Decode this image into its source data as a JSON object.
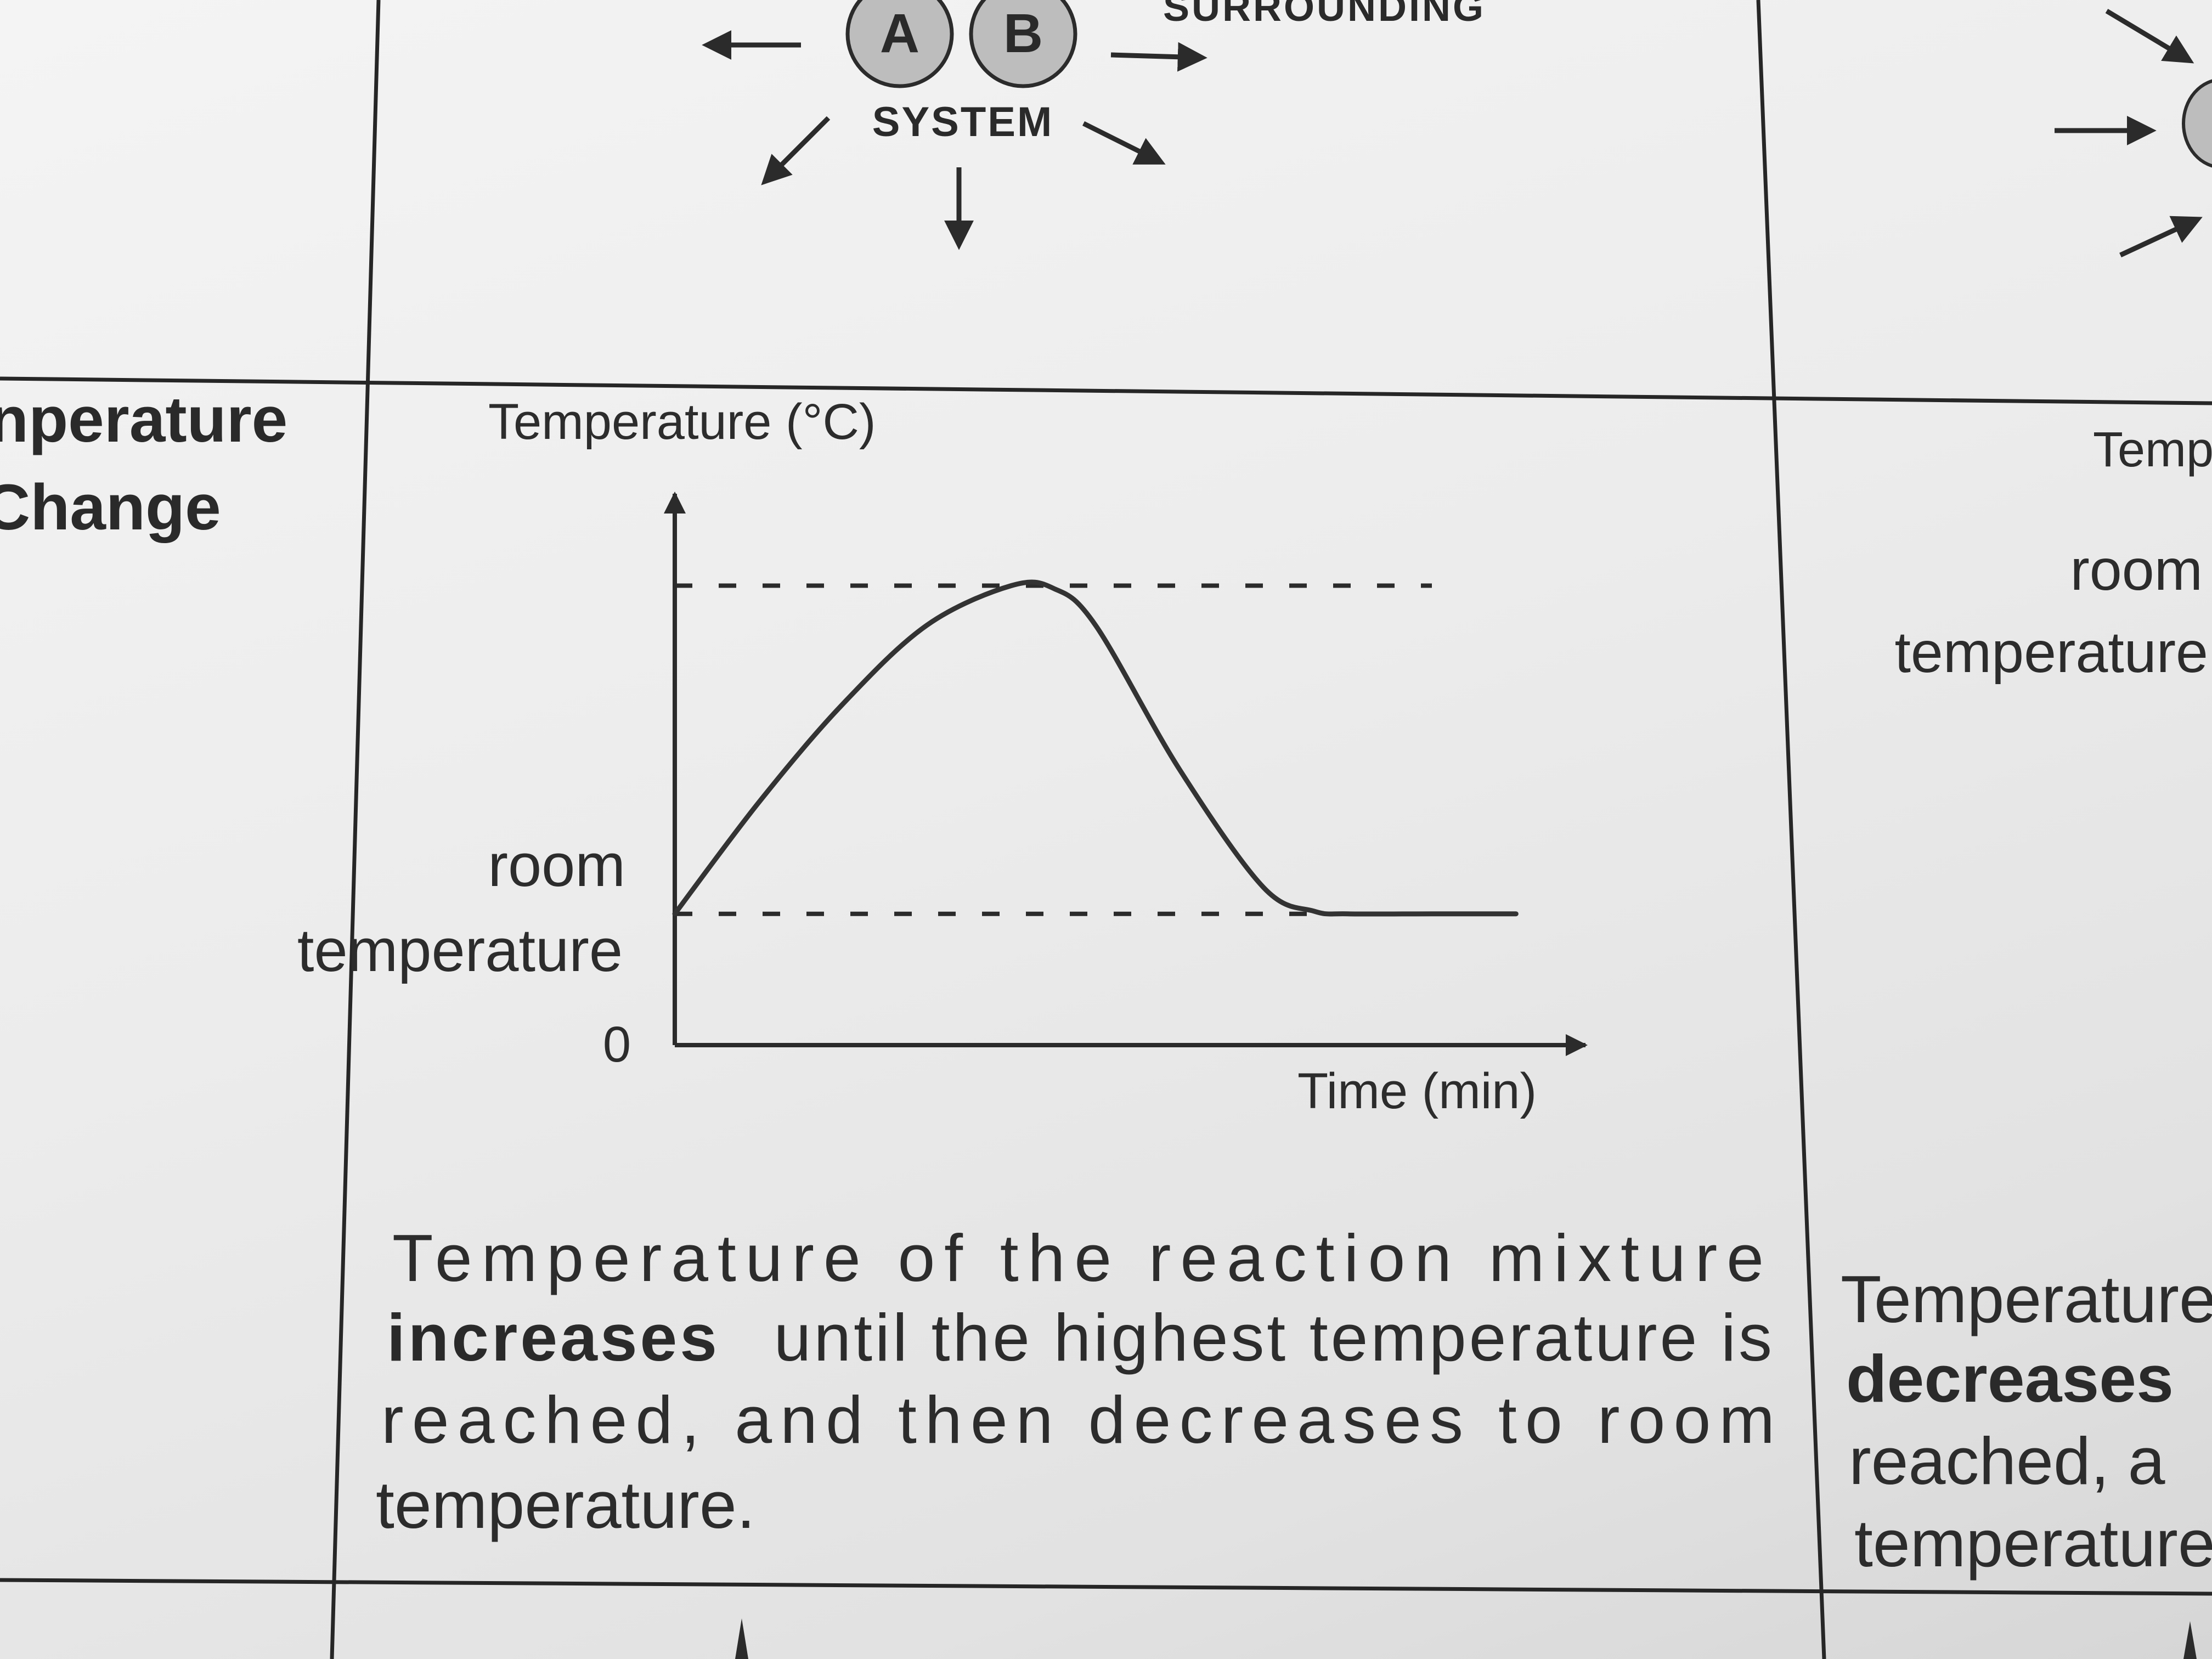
{
  "top_diagram": {
    "surrounding_label": "SURROUNDING",
    "particle_a": "A",
    "particle_b": "B",
    "system_label": "SYSTEM",
    "arrow_icons": [
      "arrow-left-icon",
      "arrow-right-icon",
      "arrow-down-left-icon",
      "arrow-down-icon",
      "arrow-down-right-icon"
    ]
  },
  "left_column": {
    "heading_line1": "nperature",
    "heading_line2": "Change"
  },
  "chart_data": {
    "type": "line",
    "ylabel": "Temperature (°C)",
    "xlabel": "Time (min)",
    "origin_label": "0",
    "reference_label_line1": "room",
    "reference_label_line2": "temperature",
    "y_levels": {
      "zero": 0,
      "room_temperature": 1,
      "highest_temperature": 3.5
    },
    "series": [
      {
        "x": [
          0,
          1,
          2,
          3,
          4,
          4.5,
          5,
          6,
          7,
          7.6,
          8,
          9,
          10
        ],
        "y": [
          1,
          1.85,
          2.6,
          3.2,
          3.5,
          3.48,
          3.2,
          2.1,
          1.2,
          1.02,
          1,
          1,
          1
        ]
      }
    ],
    "dashed_reference_lines": [
      "highest_temperature",
      "room_temperature"
    ],
    "xlim": [
      0,
      10.5
    ],
    "ylim": [
      0,
      4.2
    ],
    "grid": false
  },
  "description_paragraph": {
    "line1": "Temperature of the reaction mixture",
    "line2_bold": "increases",
    "line2_rest": "until the highest temperature is",
    "line3": "reached, and then decreases to room",
    "line4": "temperature."
  },
  "right_column": {
    "ylabel_partial": "Temp",
    "reference_label_line1": "room",
    "reference_label_line2": "temperature",
    "text_line1": "Temperature",
    "text_line2_bold": "decreases",
    "text_line3": "reached, a",
    "text_line4": "temperature"
  }
}
